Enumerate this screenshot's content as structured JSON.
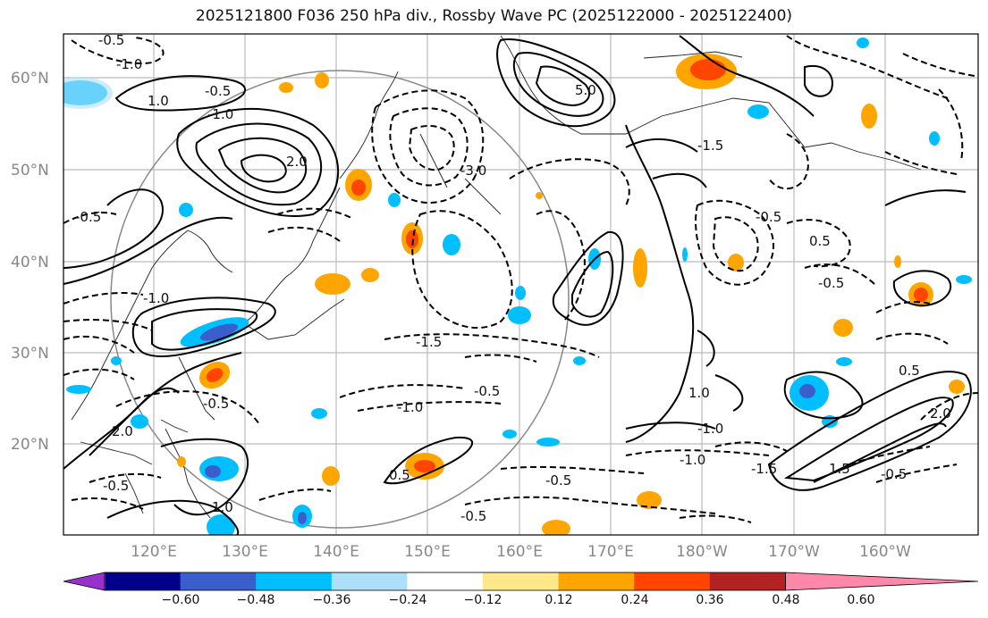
{
  "title": "2025121800 F036 250 hPa div., Rossby Wave PC (2025122000 - 2025122400)",
  "lat_labels": [
    "60°N",
    "50°N",
    "40°N",
    "30°N",
    "20°N"
  ],
  "lon_labels": [
    "120°E",
    "130°E",
    "140°E",
    "150°E",
    "160°E",
    "170°E",
    "180°W",
    "170°W",
    "160°W"
  ],
  "colorbar": {
    "ticks": [
      "−0.60",
      "−0.48",
      "−0.36",
      "−0.24",
      "−0.12",
      "0.12",
      "0.24",
      "0.36",
      "0.48",
      "0.60"
    ],
    "colors": [
      "#9932CC",
      "#00008B",
      "#3A5FCD",
      "#00BFFF",
      "#ADDFF8",
      "#FFFFFF",
      "#FFE88A",
      "#FFA500",
      "#FF4500",
      "#B22222",
      "#FF88AA"
    ]
  },
  "contour_labels": [
    "-0.5",
    "-1.0",
    "-0.5",
    "1.0",
    "2.0",
    "-3.0",
    "5.0",
    "-0.5",
    "-1.5",
    "-1.0",
    "0.5",
    "-0.5",
    "-1.0",
    "2.0",
    "1.0",
    "-1.5",
    "-1.0",
    "-0.5",
    "1.5",
    "-1.5",
    "-0.5",
    "2.0",
    "-0.5",
    "-1.0",
    "0.5",
    "-0.5",
    "-1.0",
    "-0.5",
    "1.0",
    "0.5",
    "-0.5",
    "-0.5"
  ]
}
